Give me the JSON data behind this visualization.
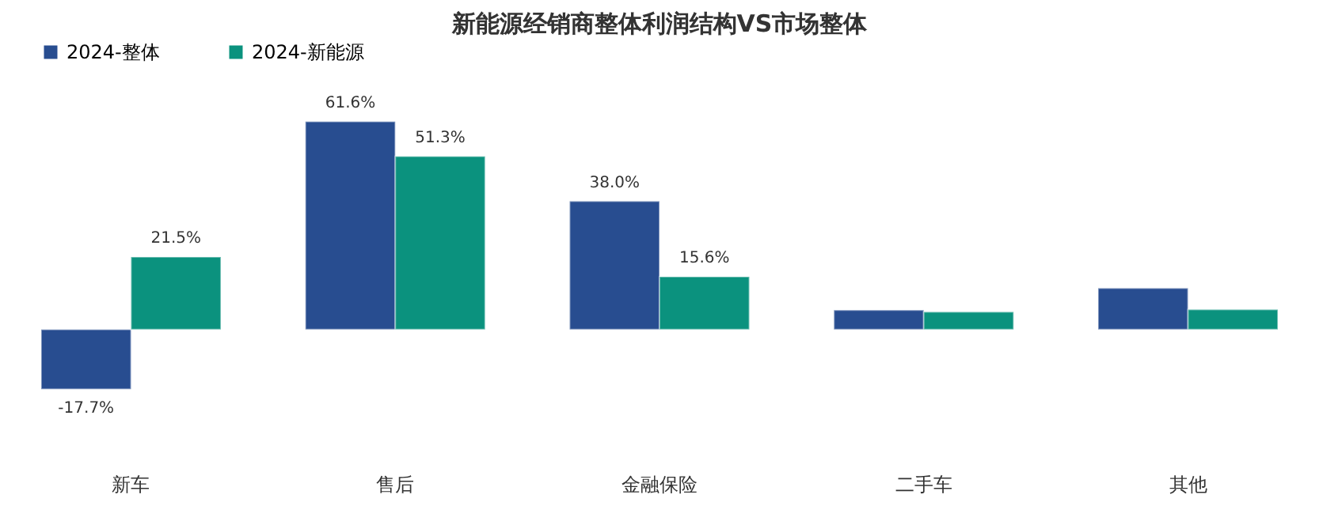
{
  "chart_data": {
    "type": "bar",
    "title": "新能源经销商整体利润结构VS市场整体",
    "categories": [
      "新车",
      "售后",
      "金融保险",
      "二手车",
      "其他"
    ],
    "series": [
      {
        "name": "2024-整体",
        "color": "#284d90",
        "values": [
          -17.7,
          61.6,
          38.0,
          5.7,
          12.2
        ],
        "value_labels": [
          "-17.7%",
          "61.6%",
          "38.0%",
          null,
          null
        ]
      },
      {
        "name": "2024-新能源",
        "color": "#0b927e",
        "values": [
          21.5,
          51.3,
          15.6,
          5.2,
          5.9
        ],
        "value_labels": [
          "21.5%",
          "51.3%",
          "15.6%",
          null,
          null
        ]
      }
    ],
    "legend": "top",
    "grid": false
  }
}
